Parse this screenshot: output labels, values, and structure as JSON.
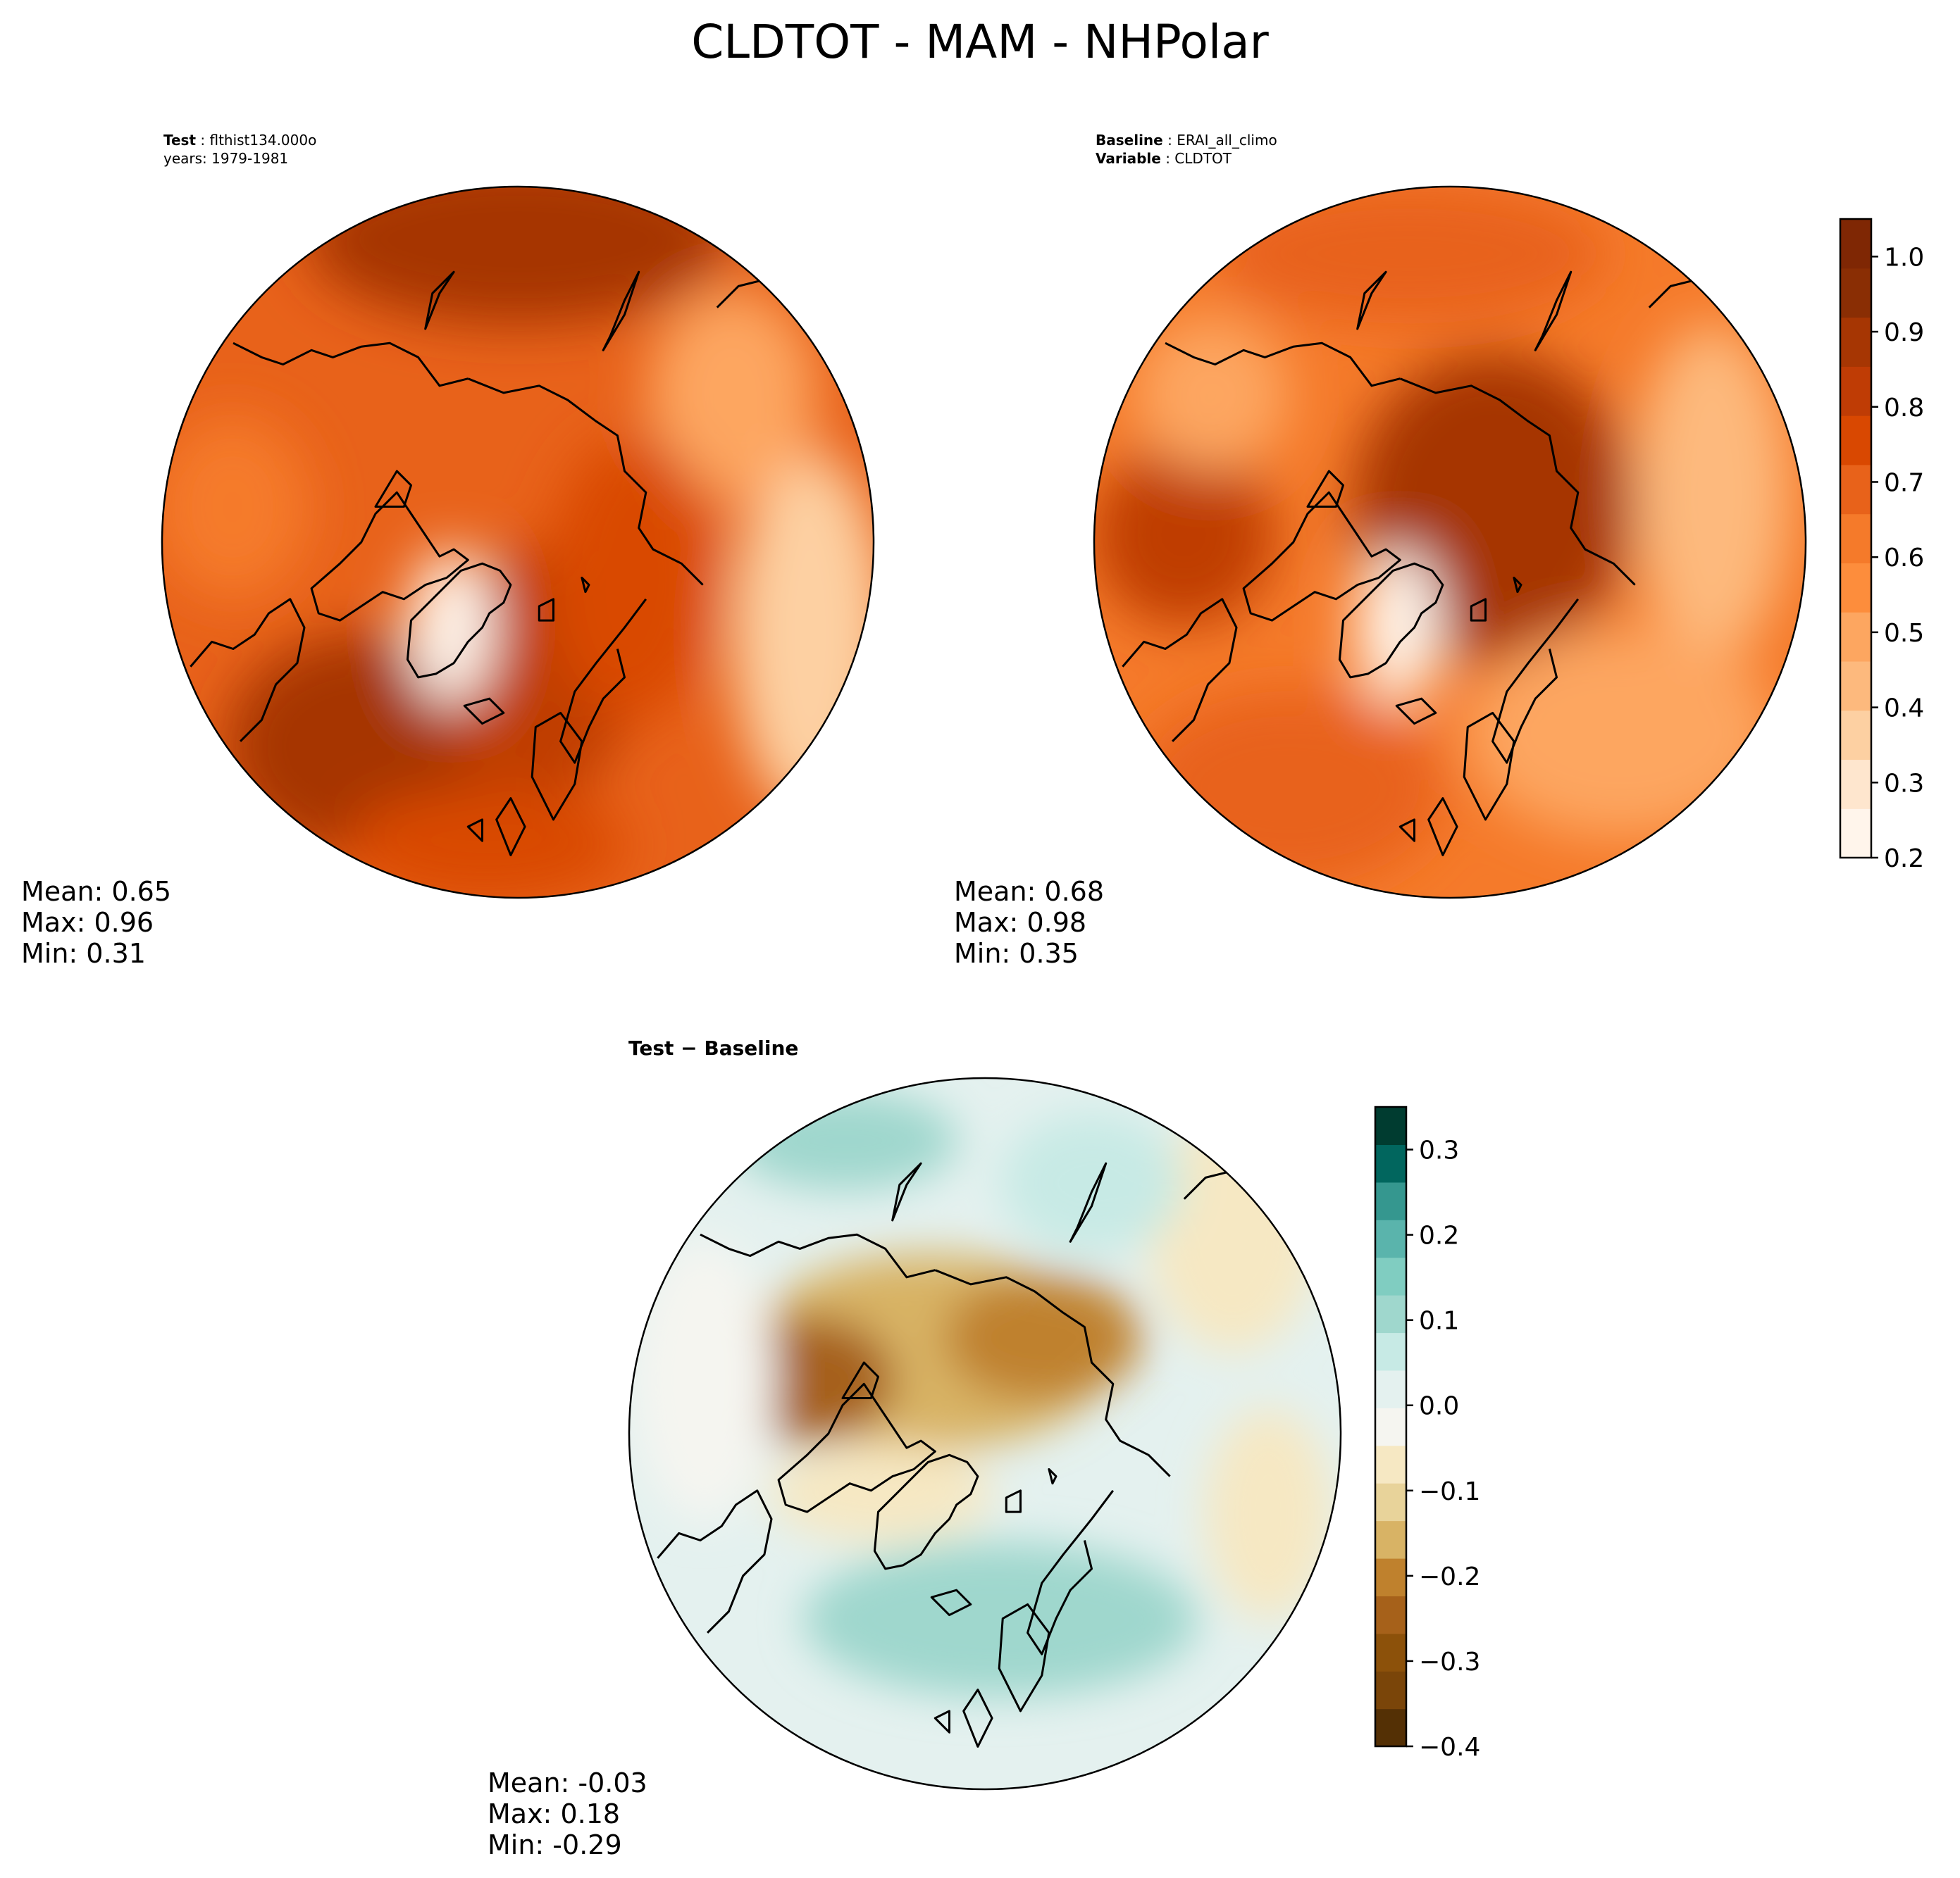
{
  "figure": {
    "title": "CLDTOT - MAM - NHPolar"
  },
  "colors": {
    "test_palette": [
      "#fff5eb",
      "#fee6ce",
      "#fdd0a2",
      "#fdb97d",
      "#fda660",
      "#fd8d3c",
      "#f57a2a",
      "#e8621a",
      "#d94801",
      "#bf3c05",
      "#a63603",
      "#8a2e04",
      "#7f2704"
    ],
    "diff_palette": [
      "#543005",
      "#7a4509",
      "#8c510a",
      "#a6611a",
      "#bf812d",
      "#d8b365",
      "#e8d39a",
      "#f6e8c3",
      "#f5f5f0",
      "#e4f1ef",
      "#c7eae5",
      "#9fd7cd",
      "#80cdc1",
      "#5ab4ac",
      "#35978f",
      "#01665e",
      "#003c30"
    ],
    "land_outline": "#000000"
  },
  "chart_data": [
    {
      "type": "heatmap",
      "panel": "test",
      "header_line1_label": "Test",
      "header_line1_value": "flthist134.000o",
      "header_line2": "years: 1979-1981",
      "stats": [
        "Mean:  0.65",
        "Max:  0.96",
        "Min:  0.31"
      ],
      "mean": 0.65,
      "max": 0.96,
      "min": 0.31
    },
    {
      "type": "heatmap",
      "panel": "baseline",
      "header_line1_label": "Baseline",
      "header_line1_value": "ERAI_all_climo",
      "header_line2_label": "Variable",
      "header_line2_value": "CLDTOT",
      "stats": [
        "Mean:  0.68",
        "Max:  0.98",
        "Min:  0.35"
      ],
      "mean": 0.68,
      "max": 0.98,
      "min": 0.35,
      "colorbar": {
        "range": [
          0.2,
          1.05
        ],
        "ticks": [
          0.2,
          0.3,
          0.4,
          0.5,
          0.6,
          0.7,
          0.8,
          0.9,
          1.0
        ],
        "tick_labels": [
          "0.2",
          "0.3",
          "0.4",
          "0.5",
          "0.6",
          "0.7",
          "0.8",
          "0.9",
          "1.0"
        ]
      }
    },
    {
      "type": "heatmap",
      "panel": "difference",
      "header": "Test − Baseline",
      "stats": [
        "Mean: -0.03",
        "Max:  0.18",
        "Min: -0.29"
      ],
      "mean": -0.03,
      "max": 0.18,
      "min": -0.29,
      "colorbar": {
        "range": [
          -0.4,
          0.35
        ],
        "ticks": [
          -0.4,
          -0.3,
          -0.2,
          -0.1,
          0.0,
          0.1,
          0.2,
          0.3
        ],
        "tick_labels": [
          "−0.4",
          "−0.3",
          "−0.2",
          "−0.1",
          "0.0",
          "0.1",
          "0.2",
          "0.3"
        ]
      }
    }
  ]
}
